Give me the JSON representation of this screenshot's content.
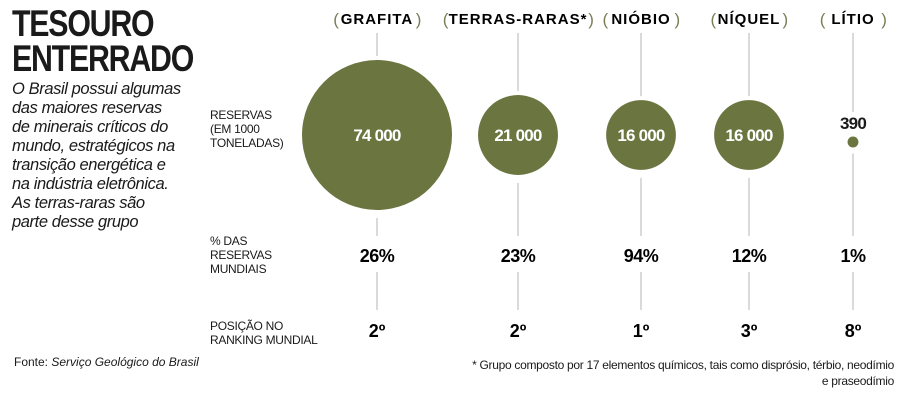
{
  "title": [
    "TESOURO",
    "ENTERRADO"
  ],
  "intro": "O Brasil possui algumas das maiores reservas de minerais críticos do mundo, estratégicos na transição energética e na indústria eletrônica. As terras-raras são parte desse grupo",
  "source_label": "Fonte:",
  "source_value": "Serviço Geológico do Brasil",
  "row_labels": {
    "reserves": "RESERVAS (EM 1000 TONELADAS)",
    "share": "% DAS RESERVAS MUNDIAIS",
    "rank": "POSIÇÃO NO RANKING MUNDIAL"
  },
  "footnote": "* Grupo composto por 17 elementos químicos, tais como disprósio, térbio, neodímio e praseodímio",
  "colors": {
    "bubble": "#6b7540",
    "line": "#b5b5b5"
  },
  "chart_data": {
    "type": "bubble",
    "title": "TESOURO ENTERRADO",
    "categories": [
      "GRAFITA",
      "TERRAS-RARAS*",
      "NIÓBIO",
      "NÍQUEL",
      "LÍTIO"
    ],
    "reserves": [
      74000,
      21000,
      16000,
      16000,
      390
    ],
    "reserves_labels": [
      "74 000",
      "21 000",
      "16 000",
      "16 000",
      "390"
    ],
    "share_labels": [
      "26%",
      "23%",
      "94%",
      "12%",
      "1%"
    ],
    "share_percent": [
      26,
      23,
      94,
      12,
      1
    ],
    "rank_labels": [
      "2º",
      "2º",
      "1º",
      "3º",
      "8º"
    ],
    "rank": [
      2,
      2,
      1,
      3,
      8
    ],
    "reserves_unit": "1000 toneladas"
  }
}
